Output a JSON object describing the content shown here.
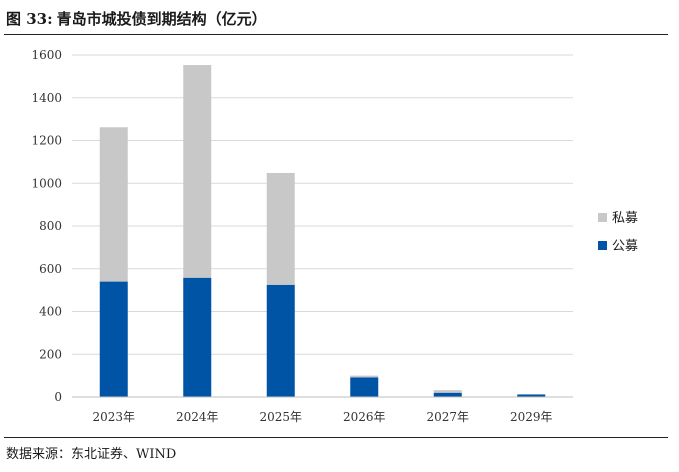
{
  "figure": {
    "number": "图 33:",
    "title": "青岛市城投债到期结构（亿元）",
    "source": "数据来源：东北证券、WIND"
  },
  "chart_data": {
    "type": "bar",
    "stacked": true,
    "categories": [
      "2023年",
      "2024年",
      "2025年",
      "2026年",
      "2027年",
      "2029年"
    ],
    "series": [
      {
        "name": "公募",
        "color": "#0054a6",
        "values": [
          540,
          558,
          525,
          92,
          20,
          12
        ]
      },
      {
        "name": "私募",
        "color": "#c8c8c8",
        "values": [
          722,
          995,
          523,
          8,
          12,
          0
        ]
      }
    ],
    "ylim": [
      0,
      1600
    ],
    "yticks": [
      0,
      200,
      400,
      600,
      800,
      1000,
      1200,
      1400,
      1600
    ],
    "grid": true,
    "legend_position": "right",
    "legend_order": [
      "私募",
      "公募"
    ]
  }
}
